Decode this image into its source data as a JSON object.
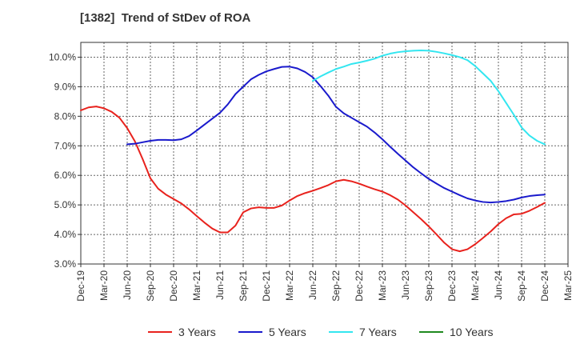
{
  "chart_data": {
    "type": "line",
    "title": "[1382]  Trend of StDev of ROA",
    "xlabel": "",
    "ylabel": "",
    "ylim": [
      3.0,
      10.5
    ],
    "yticks": [
      3.0,
      4.0,
      5.0,
      6.0,
      7.0,
      8.0,
      9.0,
      10.0
    ],
    "ytick_labels": [
      "3.0%",
      "4.0%",
      "5.0%",
      "6.0%",
      "7.0%",
      "8.0%",
      "9.0%",
      "10.0%"
    ],
    "xlim": [
      "2019-12",
      "2025-03"
    ],
    "xtick_labels": [
      "Dec-19",
      "Mar-20",
      "Jun-20",
      "Sep-20",
      "Dec-20",
      "Mar-21",
      "Jun-21",
      "Sep-21",
      "Dec-21",
      "Mar-22",
      "Jun-22",
      "Sep-22",
      "Dec-22",
      "Mar-23",
      "Jun-23",
      "Sep-23",
      "Dec-23",
      "Mar-24",
      "Jun-24",
      "Sep-24",
      "Dec-24",
      "Mar-25"
    ],
    "grid": true,
    "legend_position": "bottom",
    "series": [
      {
        "name": "3 Years",
        "color": "#e8221d",
        "points": [
          [
            "2019-12",
            8.2
          ],
          [
            "2020-01",
            8.3
          ],
          [
            "2020-02",
            8.33
          ],
          [
            "2020-03",
            8.27
          ],
          [
            "2020-04",
            8.15
          ],
          [
            "2020-05",
            7.95
          ],
          [
            "2020-06",
            7.6
          ],
          [
            "2020-07",
            7.15
          ],
          [
            "2020-08",
            6.55
          ],
          [
            "2020-09",
            5.9
          ],
          [
            "2020-10",
            5.55
          ],
          [
            "2020-11",
            5.35
          ],
          [
            "2020-12",
            5.2
          ],
          [
            "2021-01",
            5.05
          ],
          [
            "2021-02",
            4.85
          ],
          [
            "2021-03",
            4.62
          ],
          [
            "2021-04",
            4.4
          ],
          [
            "2021-05",
            4.2
          ],
          [
            "2021-06",
            4.07
          ],
          [
            "2021-07",
            4.07
          ],
          [
            "2021-08",
            4.3
          ],
          [
            "2021-09",
            4.75
          ],
          [
            "2021-10",
            4.88
          ],
          [
            "2021-11",
            4.92
          ],
          [
            "2021-12",
            4.9
          ],
          [
            "2022-01",
            4.9
          ],
          [
            "2022-02",
            4.98
          ],
          [
            "2022-03",
            5.15
          ],
          [
            "2022-04",
            5.3
          ],
          [
            "2022-05",
            5.4
          ],
          [
            "2022-06",
            5.48
          ],
          [
            "2022-07",
            5.57
          ],
          [
            "2022-08",
            5.67
          ],
          [
            "2022-09",
            5.8
          ],
          [
            "2022-10",
            5.85
          ],
          [
            "2022-11",
            5.8
          ],
          [
            "2022-12",
            5.72
          ],
          [
            "2023-01",
            5.62
          ],
          [
            "2023-02",
            5.53
          ],
          [
            "2023-03",
            5.45
          ],
          [
            "2023-04",
            5.33
          ],
          [
            "2023-05",
            5.18
          ],
          [
            "2023-06",
            4.98
          ],
          [
            "2023-07",
            4.75
          ],
          [
            "2023-08",
            4.52
          ],
          [
            "2023-09",
            4.27
          ],
          [
            "2023-10",
            4.0
          ],
          [
            "2023-11",
            3.72
          ],
          [
            "2023-12",
            3.5
          ],
          [
            "2024-01",
            3.43
          ],
          [
            "2024-02",
            3.5
          ],
          [
            "2024-03",
            3.67
          ],
          [
            "2024-04",
            3.88
          ],
          [
            "2024-05",
            4.1
          ],
          [
            "2024-06",
            4.35
          ],
          [
            "2024-07",
            4.55
          ],
          [
            "2024-08",
            4.68
          ],
          [
            "2024-09",
            4.7
          ],
          [
            "2024-10",
            4.8
          ],
          [
            "2024-11",
            4.93
          ],
          [
            "2024-12",
            5.07
          ]
        ]
      },
      {
        "name": "5 Years",
        "color": "#1a1acc",
        "points": [
          [
            "2020-06",
            7.05
          ],
          [
            "2020-07",
            7.07
          ],
          [
            "2020-08",
            7.12
          ],
          [
            "2020-09",
            7.17
          ],
          [
            "2020-10",
            7.2
          ],
          [
            "2020-11",
            7.2
          ],
          [
            "2020-12",
            7.19
          ],
          [
            "2021-01",
            7.22
          ],
          [
            "2021-02",
            7.33
          ],
          [
            "2021-03",
            7.52
          ],
          [
            "2021-04",
            7.72
          ],
          [
            "2021-05",
            7.92
          ],
          [
            "2021-06",
            8.12
          ],
          [
            "2021-07",
            8.4
          ],
          [
            "2021-08",
            8.75
          ],
          [
            "2021-09",
            9.0
          ],
          [
            "2021-10",
            9.25
          ],
          [
            "2021-11",
            9.4
          ],
          [
            "2021-12",
            9.52
          ],
          [
            "2022-01",
            9.6
          ],
          [
            "2022-02",
            9.67
          ],
          [
            "2022-03",
            9.68
          ],
          [
            "2022-04",
            9.62
          ],
          [
            "2022-05",
            9.5
          ],
          [
            "2022-06",
            9.32
          ],
          [
            "2022-07",
            9.02
          ],
          [
            "2022-08",
            8.7
          ],
          [
            "2022-09",
            8.32
          ],
          [
            "2022-10",
            8.1
          ],
          [
            "2022-11",
            7.95
          ],
          [
            "2022-12",
            7.8
          ],
          [
            "2023-01",
            7.65
          ],
          [
            "2023-02",
            7.45
          ],
          [
            "2023-03",
            7.22
          ],
          [
            "2023-04",
            6.97
          ],
          [
            "2023-05",
            6.73
          ],
          [
            "2023-06",
            6.5
          ],
          [
            "2023-07",
            6.27
          ],
          [
            "2023-08",
            6.07
          ],
          [
            "2023-09",
            5.88
          ],
          [
            "2023-10",
            5.72
          ],
          [
            "2023-11",
            5.57
          ],
          [
            "2023-12",
            5.45
          ],
          [
            "2024-01",
            5.33
          ],
          [
            "2024-02",
            5.22
          ],
          [
            "2024-03",
            5.15
          ],
          [
            "2024-04",
            5.1
          ],
          [
            "2024-05",
            5.08
          ],
          [
            "2024-06",
            5.1
          ],
          [
            "2024-07",
            5.13
          ],
          [
            "2024-08",
            5.18
          ],
          [
            "2024-09",
            5.25
          ],
          [
            "2024-10",
            5.3
          ],
          [
            "2024-11",
            5.33
          ],
          [
            "2024-12",
            5.35
          ]
        ]
      },
      {
        "name": "7 Years",
        "color": "#33e6f0",
        "points": [
          [
            "2022-06",
            9.2
          ],
          [
            "2022-07",
            9.35
          ],
          [
            "2022-08",
            9.48
          ],
          [
            "2022-09",
            9.6
          ],
          [
            "2022-10",
            9.68
          ],
          [
            "2022-11",
            9.77
          ],
          [
            "2022-12",
            9.82
          ],
          [
            "2023-01",
            9.88
          ],
          [
            "2023-02",
            9.95
          ],
          [
            "2023-03",
            10.05
          ],
          [
            "2023-04",
            10.12
          ],
          [
            "2023-05",
            10.17
          ],
          [
            "2023-06",
            10.2
          ],
          [
            "2023-07",
            10.22
          ],
          [
            "2023-08",
            10.23
          ],
          [
            "2023-09",
            10.22
          ],
          [
            "2023-10",
            10.18
          ],
          [
            "2023-11",
            10.13
          ],
          [
            "2023-12",
            10.07
          ],
          [
            "2024-01",
            10.0
          ],
          [
            "2024-02",
            9.9
          ],
          [
            "2024-03",
            9.7
          ],
          [
            "2024-04",
            9.45
          ],
          [
            "2024-05",
            9.2
          ],
          [
            "2024-06",
            8.85
          ],
          [
            "2024-07",
            8.45
          ],
          [
            "2024-08",
            8.05
          ],
          [
            "2024-09",
            7.62
          ],
          [
            "2024-10",
            7.35
          ],
          [
            "2024-11",
            7.17
          ],
          [
            "2024-12",
            7.05
          ]
        ]
      },
      {
        "name": "10 Years",
        "color": "#1f8a1f",
        "points": []
      }
    ]
  }
}
